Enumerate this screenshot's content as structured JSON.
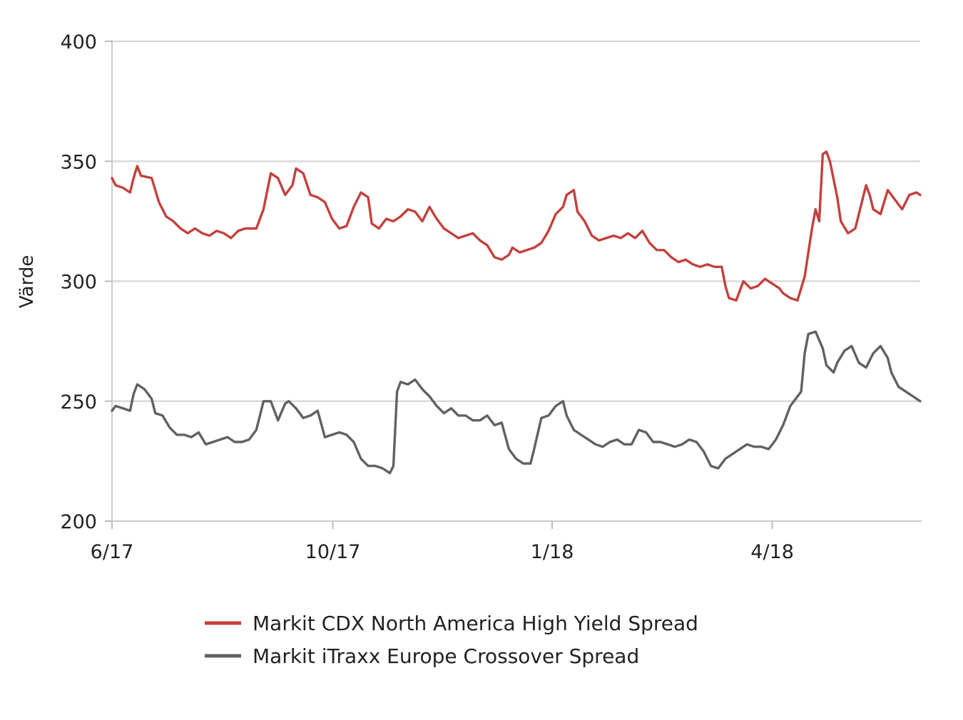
{
  "chart_data": {
    "type": "line",
    "title": "",
    "xlabel": "",
    "ylabel": "Värde",
    "ylim": [
      200,
      400
    ],
    "yticks": [
      200,
      250,
      300,
      350,
      400
    ],
    "x_range_months": [
      0,
      11.2
    ],
    "xticks": [
      {
        "label": "6/17",
        "month": 0
      },
      {
        "label": "10/17",
        "month": 3.06
      },
      {
        "label": "1/18",
        "month": 6.1
      },
      {
        "label": "4/18",
        "month": 9.15
      }
    ],
    "grid": true,
    "legend_position": "bottom",
    "series": [
      {
        "name": "Markit CDX North America High Yield Spread",
        "color": "#c4403c",
        "points": [
          [
            0.0,
            343
          ],
          [
            0.05,
            340
          ],
          [
            0.15,
            339
          ],
          [
            0.25,
            337
          ],
          [
            0.3,
            343
          ],
          [
            0.35,
            348
          ],
          [
            0.4,
            344
          ],
          [
            0.55,
            343
          ],
          [
            0.65,
            333
          ],
          [
            0.75,
            327
          ],
          [
            0.85,
            325
          ],
          [
            0.95,
            322
          ],
          [
            1.05,
            320
          ],
          [
            1.15,
            322
          ],
          [
            1.25,
            320
          ],
          [
            1.35,
            319
          ],
          [
            1.45,
            321
          ],
          [
            1.55,
            320
          ],
          [
            1.65,
            318
          ],
          [
            1.75,
            321
          ],
          [
            1.85,
            322
          ],
          [
            2.0,
            322
          ],
          [
            2.1,
            330
          ],
          [
            2.2,
            345
          ],
          [
            2.3,
            343
          ],
          [
            2.4,
            336
          ],
          [
            2.5,
            340
          ],
          [
            2.55,
            347
          ],
          [
            2.65,
            345
          ],
          [
            2.75,
            336
          ],
          [
            2.85,
            335
          ],
          [
            2.95,
            333
          ],
          [
            3.05,
            326
          ],
          [
            3.15,
            322
          ],
          [
            3.25,
            323
          ],
          [
            3.35,
            331
          ],
          [
            3.45,
            337
          ],
          [
            3.55,
            335
          ],
          [
            3.6,
            324
          ],
          [
            3.7,
            322
          ],
          [
            3.8,
            326
          ],
          [
            3.9,
            325
          ],
          [
            4.0,
            327
          ],
          [
            4.1,
            330
          ],
          [
            4.2,
            329
          ],
          [
            4.3,
            325
          ],
          [
            4.4,
            331
          ],
          [
            4.5,
            326
          ],
          [
            4.6,
            322
          ],
          [
            4.7,
            320
          ],
          [
            4.8,
            318
          ],
          [
            4.9,
            319
          ],
          [
            5.0,
            320
          ],
          [
            5.1,
            317
          ],
          [
            5.2,
            315
          ],
          [
            5.3,
            310
          ],
          [
            5.4,
            309
          ],
          [
            5.5,
            311
          ],
          [
            5.55,
            314
          ],
          [
            5.65,
            312
          ],
          [
            5.75,
            313
          ],
          [
            5.85,
            314
          ],
          [
            5.95,
            316
          ],
          [
            6.05,
            321
          ],
          [
            6.15,
            328
          ],
          [
            6.25,
            331
          ],
          [
            6.3,
            336
          ],
          [
            6.4,
            338
          ],
          [
            6.45,
            329
          ],
          [
            6.55,
            325
          ],
          [
            6.65,
            319
          ],
          [
            6.75,
            317
          ],
          [
            6.85,
            318
          ],
          [
            6.95,
            319
          ],
          [
            7.05,
            318
          ],
          [
            7.15,
            320
          ],
          [
            7.25,
            318
          ],
          [
            7.35,
            321
          ],
          [
            7.45,
            316
          ],
          [
            7.55,
            313
          ],
          [
            7.65,
            313
          ],
          [
            7.75,
            310
          ],
          [
            7.85,
            308
          ],
          [
            7.95,
            309
          ],
          [
            8.05,
            307
          ],
          [
            8.15,
            306
          ],
          [
            8.25,
            307
          ],
          [
            8.35,
            306
          ],
          [
            8.45,
            306
          ],
          [
            8.5,
            298
          ],
          [
            8.55,
            293
          ],
          [
            8.65,
            292
          ],
          [
            8.75,
            300
          ],
          [
            8.85,
            297
          ],
          [
            8.95,
            298
          ],
          [
            9.05,
            301
          ],
          [
            9.15,
            299
          ],
          [
            9.25,
            297
          ],
          [
            9.3,
            295
          ],
          [
            9.4,
            293
          ],
          [
            9.5,
            292
          ],
          [
            9.6,
            302
          ],
          [
            9.7,
            322
          ],
          [
            9.75,
            330
          ],
          [
            9.8,
            325
          ],
          [
            9.85,
            353
          ],
          [
            9.9,
            354
          ],
          [
            9.95,
            350
          ],
          [
            10.05,
            335
          ],
          [
            10.1,
            325
          ],
          [
            10.2,
            320
          ],
          [
            10.3,
            322
          ],
          [
            10.35,
            328
          ],
          [
            10.45,
            340
          ],
          [
            10.5,
            336
          ],
          [
            10.55,
            330
          ],
          [
            10.65,
            328
          ],
          [
            10.75,
            338
          ],
          [
            10.85,
            334
          ],
          [
            10.95,
            330
          ],
          [
            11.05,
            336
          ],
          [
            11.15,
            337
          ],
          [
            11.2,
            336
          ]
        ]
      },
      {
        "name": "Markit iTraxx Europe Crossover Spread",
        "color": "#616161",
        "points": [
          [
            0.0,
            246
          ],
          [
            0.05,
            248
          ],
          [
            0.15,
            247
          ],
          [
            0.25,
            246
          ],
          [
            0.3,
            253
          ],
          [
            0.35,
            257
          ],
          [
            0.45,
            255
          ],
          [
            0.55,
            251
          ],
          [
            0.6,
            245
          ],
          [
            0.7,
            244
          ],
          [
            0.8,
            239
          ],
          [
            0.9,
            236
          ],
          [
            1.0,
            236
          ],
          [
            1.1,
            235
          ],
          [
            1.2,
            237
          ],
          [
            1.3,
            232
          ],
          [
            1.4,
            233
          ],
          [
            1.5,
            234
          ],
          [
            1.6,
            235
          ],
          [
            1.7,
            233
          ],
          [
            1.8,
            233
          ],
          [
            1.9,
            234
          ],
          [
            2.0,
            238
          ],
          [
            2.05,
            244
          ],
          [
            2.1,
            250
          ],
          [
            2.2,
            250
          ],
          [
            2.3,
            242
          ],
          [
            2.4,
            249
          ],
          [
            2.45,
            250
          ],
          [
            2.55,
            247
          ],
          [
            2.65,
            243
          ],
          [
            2.75,
            244
          ],
          [
            2.85,
            246
          ],
          [
            2.95,
            235
          ],
          [
            3.05,
            236
          ],
          [
            3.15,
            237
          ],
          [
            3.25,
            236
          ],
          [
            3.35,
            233
          ],
          [
            3.45,
            226
          ],
          [
            3.55,
            223
          ],
          [
            3.65,
            223
          ],
          [
            3.75,
            222
          ],
          [
            3.85,
            220
          ],
          [
            3.9,
            223
          ],
          [
            3.95,
            254
          ],
          [
            4.0,
            258
          ],
          [
            4.1,
            257
          ],
          [
            4.2,
            259
          ],
          [
            4.3,
            255
          ],
          [
            4.4,
            252
          ],
          [
            4.5,
            248
          ],
          [
            4.6,
            245
          ],
          [
            4.7,
            247
          ],
          [
            4.8,
            244
          ],
          [
            4.9,
            244
          ],
          [
            5.0,
            242
          ],
          [
            5.1,
            242
          ],
          [
            5.2,
            244
          ],
          [
            5.3,
            240
          ],
          [
            5.4,
            241
          ],
          [
            5.5,
            230
          ],
          [
            5.6,
            226
          ],
          [
            5.7,
            224
          ],
          [
            5.8,
            224
          ],
          [
            5.85,
            230
          ],
          [
            5.95,
            243
          ],
          [
            6.05,
            244
          ],
          [
            6.15,
            248
          ],
          [
            6.25,
            250
          ],
          [
            6.3,
            244
          ],
          [
            6.4,
            238
          ],
          [
            6.5,
            236
          ],
          [
            6.6,
            234
          ],
          [
            6.7,
            232
          ],
          [
            6.8,
            231
          ],
          [
            6.9,
            233
          ],
          [
            7.0,
            234
          ],
          [
            7.1,
            232
          ],
          [
            7.2,
            232
          ],
          [
            7.3,
            238
          ],
          [
            7.4,
            237
          ],
          [
            7.5,
            233
          ],
          [
            7.6,
            233
          ],
          [
            7.7,
            232
          ],
          [
            7.8,
            231
          ],
          [
            7.9,
            232
          ],
          [
            8.0,
            234
          ],
          [
            8.1,
            233
          ],
          [
            8.2,
            229
          ],
          [
            8.3,
            223
          ],
          [
            8.4,
            222
          ],
          [
            8.5,
            226
          ],
          [
            8.6,
            228
          ],
          [
            8.7,
            230
          ],
          [
            8.8,
            232
          ],
          [
            8.9,
            231
          ],
          [
            9.0,
            231
          ],
          [
            9.1,
            230
          ],
          [
            9.2,
            234
          ],
          [
            9.3,
            240
          ],
          [
            9.4,
            248
          ],
          [
            9.45,
            250
          ],
          [
            9.55,
            254
          ],
          [
            9.6,
            270
          ],
          [
            9.65,
            278
          ],
          [
            9.75,
            279
          ],
          [
            9.85,
            272
          ],
          [
            9.9,
            265
          ],
          [
            10.0,
            262
          ],
          [
            10.05,
            266
          ],
          [
            10.15,
            271
          ],
          [
            10.25,
            273
          ],
          [
            10.35,
            266
          ],
          [
            10.45,
            264
          ],
          [
            10.55,
            270
          ],
          [
            10.65,
            273
          ],
          [
            10.75,
            268
          ],
          [
            10.8,
            262
          ],
          [
            10.9,
            256
          ],
          [
            11.0,
            254
          ],
          [
            11.1,
            252
          ],
          [
            11.2,
            250
          ]
        ]
      }
    ]
  }
}
